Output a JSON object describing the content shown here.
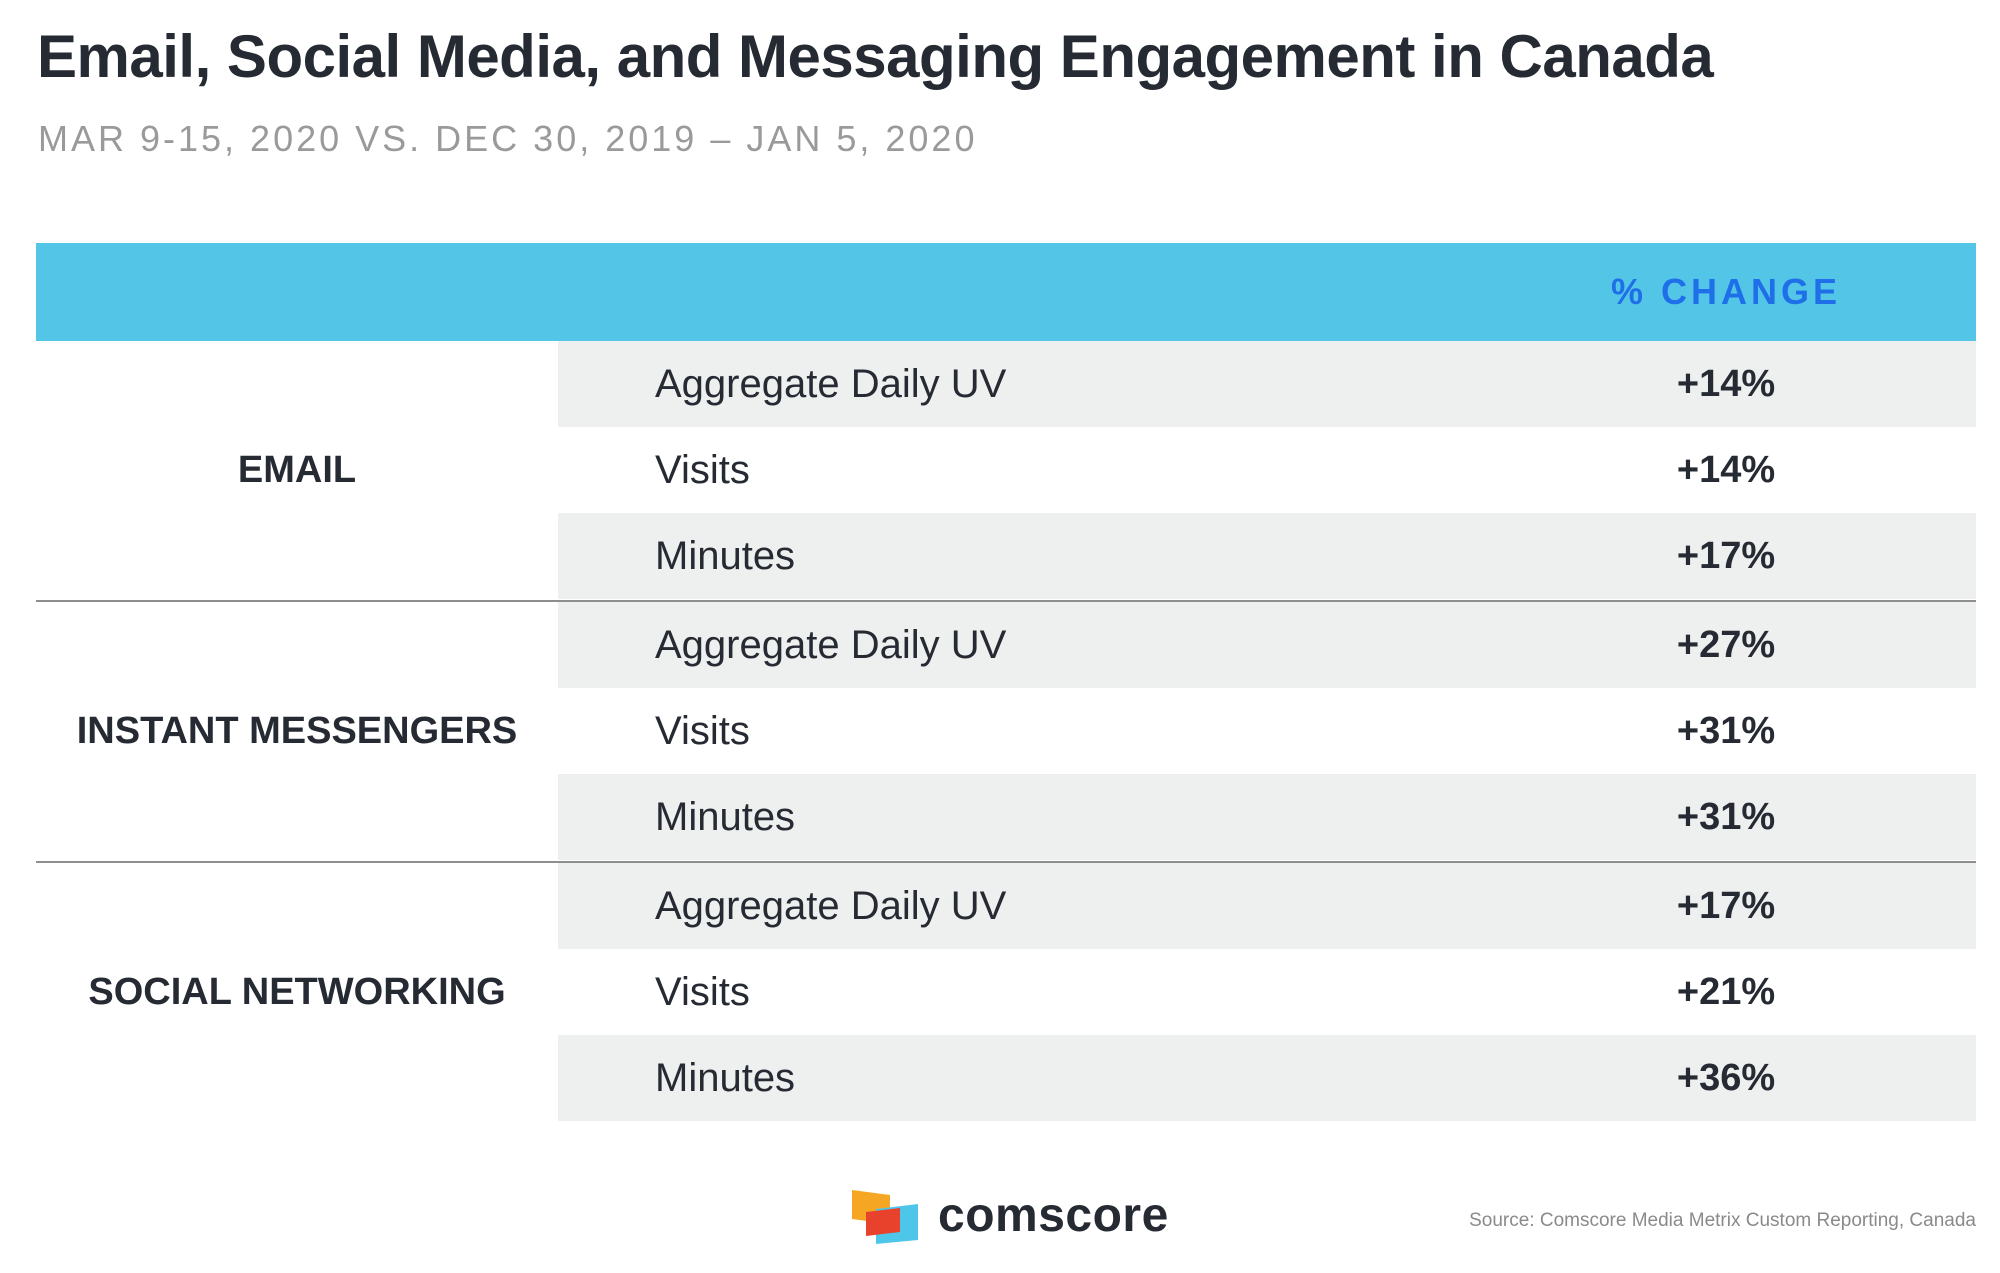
{
  "title": "Email, Social Media, and Messaging Engagement in Canada",
  "subtitle": "MAR 9-15, 2020 VS. DEC 30, 2019 – JAN 5, 2020",
  "colors": {
    "header_band": "#53c6e8",
    "header_text": "#1f6fe8",
    "row_shade": "#eeefef",
    "text": "#262a33",
    "logo_orange": "#f5a623",
    "logo_red": "#e8412c",
    "logo_blue": "#4dc6ea"
  },
  "chart_data": {
    "type": "table",
    "title": "Email, Social Media, and Messaging Engagement in Canada",
    "subtitle": "MAR 9-15, 2020 VS. DEC 30, 2019 – JAN 5, 2020",
    "column_header": "% CHANGE",
    "groups": [
      {
        "name": "EMAIL",
        "rows": [
          {
            "metric": "Aggregate Daily UV",
            "change": "+14%",
            "value": 14
          },
          {
            "metric": "Visits",
            "change": "+14%",
            "value": 14
          },
          {
            "metric": "Minutes",
            "change": "+17%",
            "value": 17
          }
        ]
      },
      {
        "name": "INSTANT MESSENGERS",
        "rows": [
          {
            "metric": "Aggregate Daily UV",
            "change": "+27%",
            "value": 27
          },
          {
            "metric": "Visits",
            "change": "+31%",
            "value": 31
          },
          {
            "metric": "Minutes",
            "change": "+31%",
            "value": 31
          }
        ]
      },
      {
        "name": "SOCIAL NETWORKING",
        "rows": [
          {
            "metric": "Aggregate Daily UV",
            "change": "+17%",
            "value": 17
          },
          {
            "metric": "Visits",
            "change": "+21%",
            "value": 21
          },
          {
            "metric": "Minutes",
            "change": "+36%",
            "value": 36
          }
        ]
      }
    ]
  },
  "footer": {
    "brand": "comscore",
    "logo_icon": "comscore-logo-icon",
    "source": "Source: Comscore Media Metrix Custom Reporting, Canada"
  }
}
